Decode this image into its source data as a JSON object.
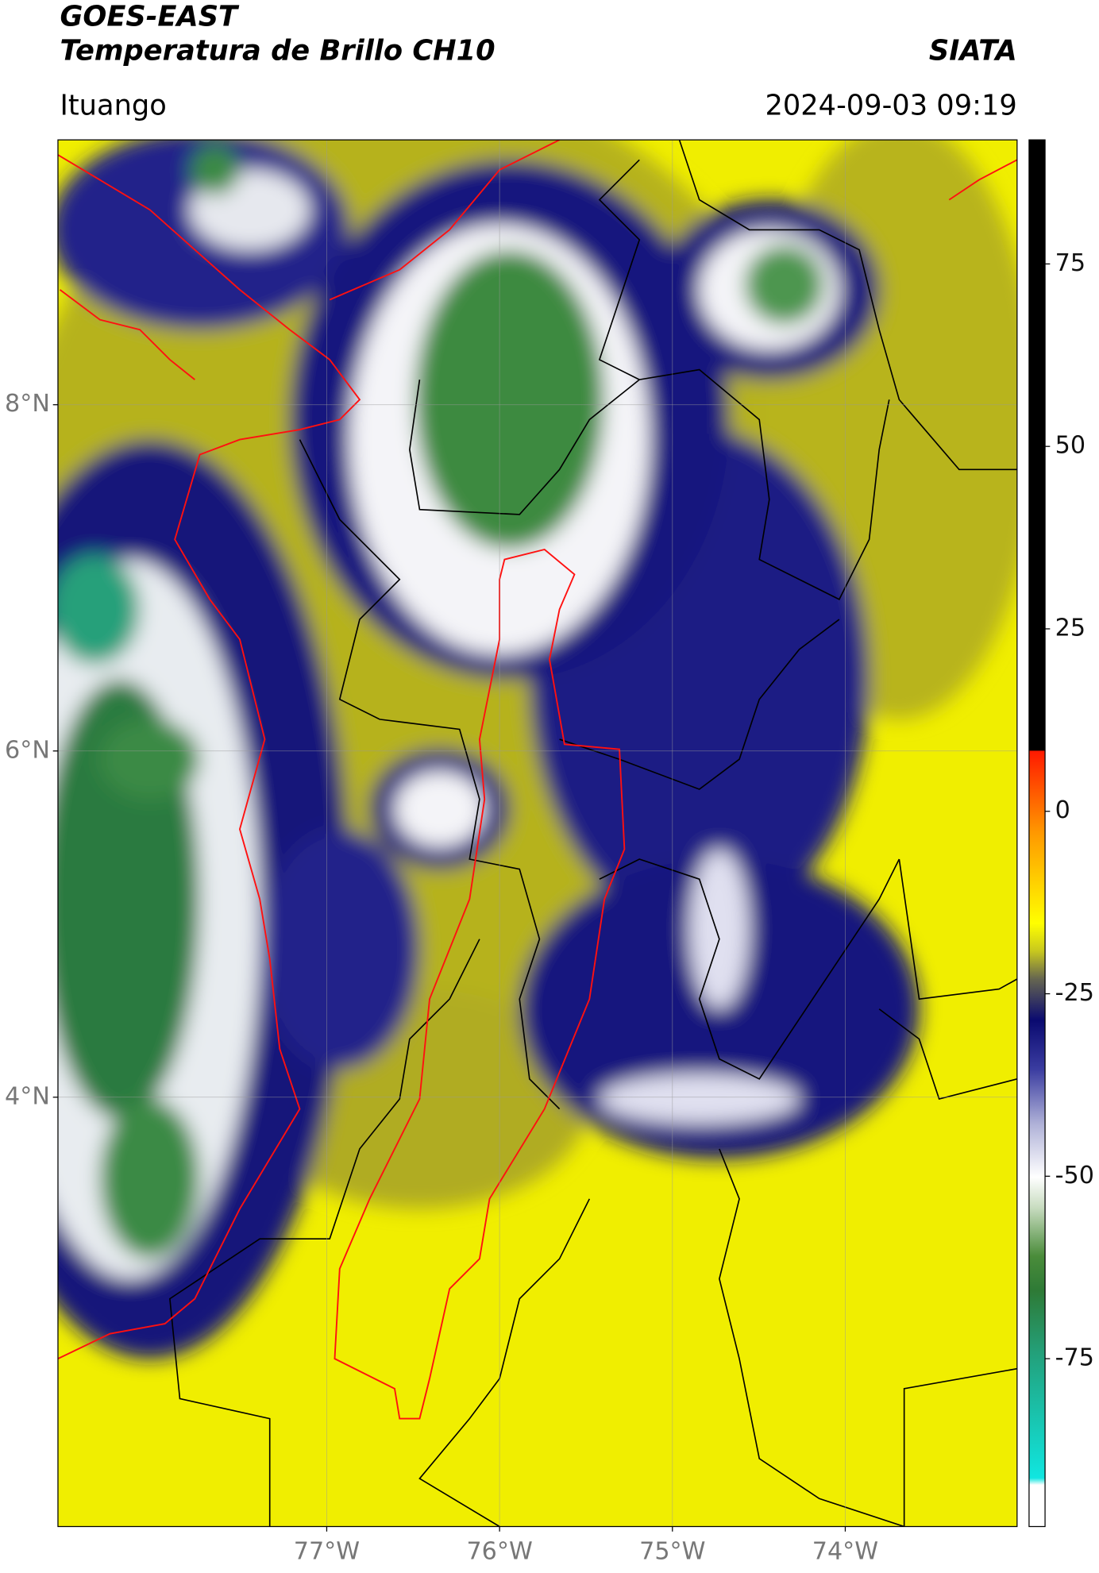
{
  "header": {
    "title": "GOES-EAST",
    "subtitle": "Temperatura de Brillo CH10",
    "source": "SIATA",
    "location": "Ituango",
    "timestamp": "2024-09-03 09:19"
  },
  "map": {
    "xlim": [
      -78.555,
      -73.006
    ],
    "ylim": [
      1.52,
      9.53
    ],
    "xticks": [
      {
        "value": -77,
        "label": "77°W"
      },
      {
        "value": -76,
        "label": "76°W"
      },
      {
        "value": -75,
        "label": "75°W"
      },
      {
        "value": -74,
        "label": "74°W"
      }
    ],
    "yticks": [
      {
        "value": 8,
        "label": "8°N"
      },
      {
        "value": 6,
        "label": "6°N"
      },
      {
        "value": 4,
        "label": "4°N"
      }
    ],
    "grid": true
  },
  "colorbar": {
    "lim": [
      -98,
      92
    ],
    "ticks": [
      75,
      50,
      25,
      0,
      -25,
      -50,
      -75
    ]
  }
}
